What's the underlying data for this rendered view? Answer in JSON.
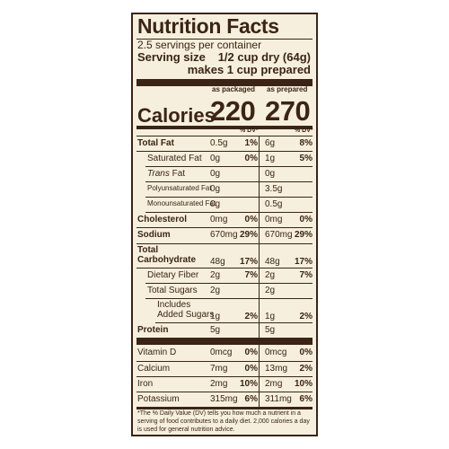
{
  "header": {
    "title": "Nutrition Facts",
    "servings": "2.5 servings per container",
    "serving_size_label": "Serving size",
    "serving_size_value": "1/2 cup dry (64g)",
    "serving_size_prepared": "makes 1 cup prepared"
  },
  "columns": {
    "packaged": "as packaged",
    "prepared": "as prepared",
    "dv_heading": "% DV*"
  },
  "calories": {
    "label": "Calories",
    "packaged": "220",
    "prepared": "270"
  },
  "nutrients": [
    {
      "name": "Total Fat",
      "pa": "0.5g",
      "pdv": "1%",
      "pr": "6g",
      "prdv": "8%"
    },
    {
      "name": "Saturated Fat",
      "pa": "0g",
      "pdv": "0%",
      "pr": "1g",
      "prdv": "5%"
    },
    {
      "name_italic": "Trans",
      "name_rest": " Fat",
      "pa": "0g",
      "pdv": "",
      "pr": "0g",
      "prdv": ""
    },
    {
      "name": "Polyunsaturated Fat",
      "pa": "0g",
      "pdv": "",
      "pr": "3.5g",
      "prdv": ""
    },
    {
      "name": "Monounsaturated Fat",
      "pa": "0g",
      "pdv": "",
      "pr": "0.5g",
      "prdv": ""
    },
    {
      "name": "Cholesterol",
      "pa": "0mg",
      "pdv": "0%",
      "pr": "0mg",
      "prdv": "0%"
    },
    {
      "name": "Sodium",
      "pa": "670mg",
      "pdv": "29%",
      "pr": "670mg",
      "prdv": "29%"
    },
    {
      "name_line1": "Total",
      "name_line2": "Carbohydrate",
      "pa": "48g",
      "pdv": "17%",
      "pr": "48g",
      "prdv": "17%"
    },
    {
      "name": "Dietary Fiber",
      "pa": "2g",
      "pdv": "7%",
      "pr": "2g",
      "prdv": "7%"
    },
    {
      "name": "Total Sugars",
      "pa": "2g",
      "pdv": "",
      "pr": "2g",
      "prdv": ""
    },
    {
      "name_line1": "Includes",
      "name_line2": "Added Sugars",
      "pa": "1g",
      "pdv": "2%",
      "pr": "1g",
      "prdv": "2%"
    },
    {
      "name": "Protein",
      "pa": "5g",
      "pdv": "",
      "pr": "5g",
      "prdv": ""
    }
  ],
  "vitamins": [
    {
      "name": "Vitamin D",
      "pa": "0mcg",
      "pdv": "0%",
      "pr": "0mcg",
      "prdv": "0%"
    },
    {
      "name": "Calcium",
      "pa": "7mg",
      "pdv": "0%",
      "pr": "13mg",
      "prdv": "2%"
    },
    {
      "name": "Iron",
      "pa": "2mg",
      "pdv": "10%",
      "pr": "2mg",
      "prdv": "10%"
    },
    {
      "name": "Potassium",
      "pa": "315mg",
      "pdv": "6%",
      "pr": "311mg",
      "prdv": "6%"
    }
  ],
  "footnote": "*The % Daily Value (DV) tells you how much a nutrient in a serving of food contributes to a daily diet. 2,000 calories a day is used for general nutrition advice.",
  "colors": {
    "background": "#f6efdd",
    "ink": "#3b2416"
  }
}
